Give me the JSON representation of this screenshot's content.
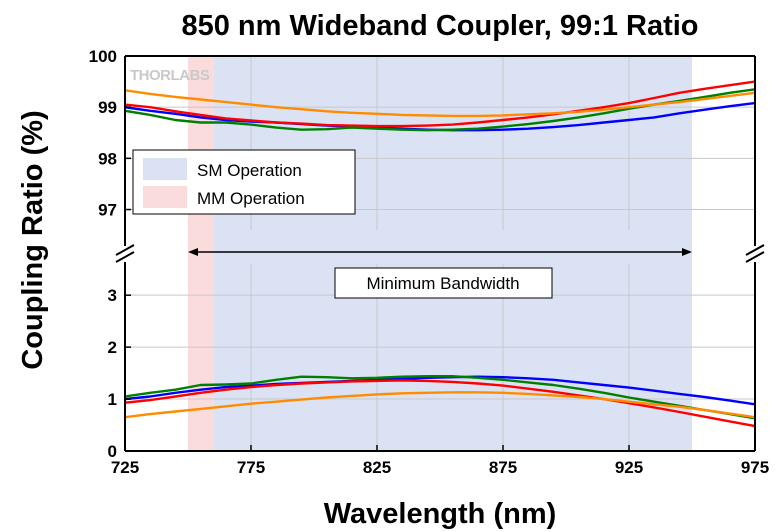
{
  "chart_data": {
    "type": "line",
    "title": "850 nm Wideband Coupler, 99:1 Ratio",
    "xlabel": "Wavelength (nm)",
    "ylabel": "Coupling Ratio (%)",
    "xlim": [
      725,
      975
    ],
    "x_ticks": [
      "725",
      "775",
      "825",
      "875",
      "925",
      "975"
    ],
    "y_ticks_upper": [
      "97",
      "98",
      "99",
      "100"
    ],
    "y_ticks_lower": [
      "0",
      "1",
      "2",
      "3"
    ],
    "ylim_upper": [
      96.6,
      100
    ],
    "ylim_lower": [
      0,
      3.6
    ],
    "broken_axis": true,
    "grid": true,
    "legend": {
      "placement": "left",
      "entries": [
        {
          "label": "SM Operation",
          "color": "#dbe2f4"
        },
        {
          "label": "MM Operation",
          "color": "#fbdcdc"
        }
      ]
    },
    "regions": [
      {
        "name": "SM Operation",
        "x": [
          760,
          950
        ],
        "color": "#dbe2f4"
      },
      {
        "name": "MM Operation",
        "x": [
          750,
          760
        ],
        "color": "#fbdcdc"
      }
    ],
    "annotations": [
      {
        "text": "Minimum Bandwidth",
        "x_from": 750,
        "x_to": 950
      }
    ],
    "logo": "THORLABS",
    "x": [
      725,
      735,
      745,
      755,
      765,
      775,
      785,
      795,
      805,
      815,
      825,
      835,
      845,
      855,
      865,
      875,
      885,
      895,
      905,
      915,
      925,
      935,
      945,
      955,
      965,
      975
    ],
    "series_upper": [
      {
        "color": "#0000ff",
        "values": [
          99.0,
          98.93,
          98.87,
          98.8,
          98.75,
          98.72,
          98.7,
          98.67,
          98.64,
          98.62,
          98.6,
          98.58,
          98.56,
          98.55,
          98.55,
          98.56,
          98.58,
          98.61,
          98.65,
          98.7,
          98.75,
          98.8,
          98.88,
          98.95,
          99.02,
          99.08
        ]
      },
      {
        "color": "#ff0000",
        "values": [
          99.05,
          99.0,
          98.92,
          98.85,
          98.78,
          98.74,
          98.7,
          98.68,
          98.65,
          98.64,
          98.63,
          98.63,
          98.64,
          98.66,
          98.7,
          98.75,
          98.8,
          98.86,
          98.93,
          99.0,
          99.08,
          99.18,
          99.28,
          99.36,
          99.43,
          99.5
        ]
      },
      {
        "color": "#008000",
        "values": [
          98.93,
          98.85,
          98.75,
          98.7,
          98.7,
          98.66,
          98.6,
          98.56,
          98.57,
          98.6,
          98.58,
          98.56,
          98.55,
          98.56,
          98.58,
          98.62,
          98.67,
          98.73,
          98.8,
          98.88,
          98.97,
          99.05,
          99.12,
          99.2,
          99.28,
          99.35
        ]
      },
      {
        "color": "#ff8c00",
        "values": [
          99.33,
          99.26,
          99.2,
          99.15,
          99.1,
          99.05,
          99.0,
          98.96,
          98.92,
          98.89,
          98.87,
          98.85,
          98.84,
          98.83,
          98.83,
          98.84,
          98.86,
          98.88,
          98.91,
          98.95,
          99.0,
          99.05,
          99.1,
          99.16,
          99.22,
          99.28
        ]
      }
    ],
    "series_lower": [
      {
        "color": "#0000ff",
        "values": [
          1.0,
          1.05,
          1.12,
          1.18,
          1.23,
          1.26,
          1.29,
          1.31,
          1.33,
          1.35,
          1.37,
          1.39,
          1.41,
          1.42,
          1.43,
          1.42,
          1.4,
          1.37,
          1.32,
          1.27,
          1.22,
          1.16,
          1.1,
          1.04,
          0.97,
          0.9
        ]
      },
      {
        "color": "#ff0000",
        "values": [
          0.93,
          0.98,
          1.05,
          1.12,
          1.18,
          1.23,
          1.27,
          1.3,
          1.32,
          1.34,
          1.35,
          1.36,
          1.35,
          1.33,
          1.3,
          1.26,
          1.2,
          1.14,
          1.07,
          1.0,
          0.92,
          0.84,
          0.75,
          0.66,
          0.57,
          0.48
        ]
      },
      {
        "color": "#008000",
        "values": [
          1.05,
          1.12,
          1.18,
          1.27,
          1.28,
          1.3,
          1.37,
          1.43,
          1.42,
          1.4,
          1.41,
          1.43,
          1.44,
          1.44,
          1.41,
          1.37,
          1.32,
          1.27,
          1.2,
          1.12,
          1.03,
          0.95,
          0.87,
          0.79,
          0.71,
          0.63
        ]
      },
      {
        "color": "#ff8c00",
        "values": [
          0.65,
          0.71,
          0.76,
          0.81,
          0.86,
          0.91,
          0.95,
          0.99,
          1.03,
          1.06,
          1.09,
          1.11,
          1.12,
          1.13,
          1.13,
          1.12,
          1.1,
          1.07,
          1.04,
          1.0,
          0.95,
          0.9,
          0.85,
          0.79,
          0.72,
          0.65
        ]
      }
    ]
  }
}
